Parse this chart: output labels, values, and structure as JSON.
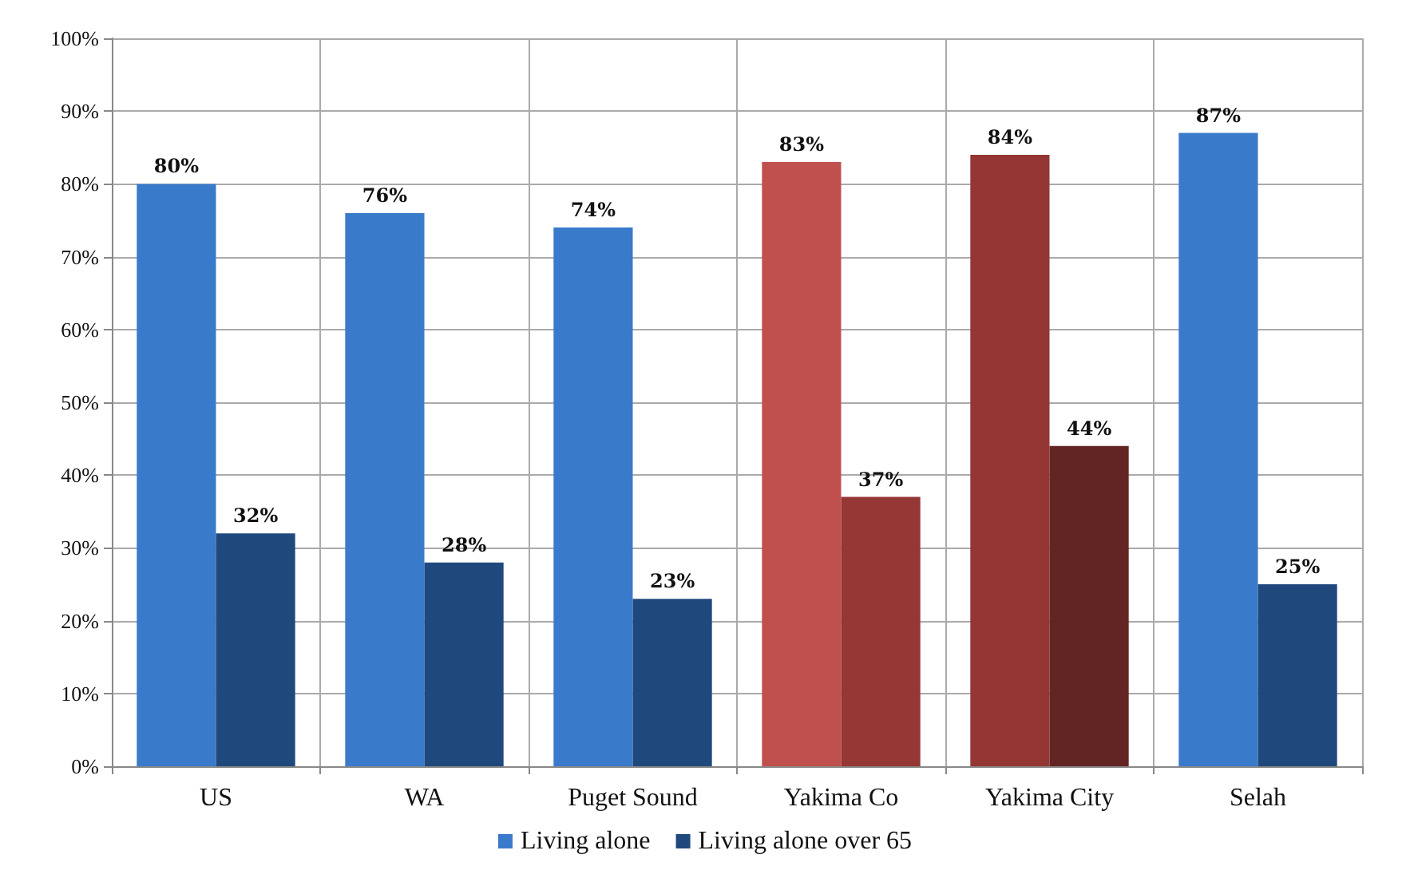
{
  "chart_data": {
    "type": "bar",
    "categories": [
      "US",
      "WA",
      "Puget Sound",
      "Yakima Co",
      "Yakima City",
      "Selah"
    ],
    "series": [
      {
        "name": "Living alone",
        "color": "#3a7acb",
        "colors": [
          "#3a7acb",
          "#3a7acb",
          "#3a7acb",
          "#c0504d",
          "#943634",
          "#3a7acb"
        ],
        "values": [
          80,
          76,
          74,
          83,
          84,
          87
        ],
        "value_labels": [
          "80%",
          "76%",
          "74%",
          "83%",
          "84%",
          "87%"
        ]
      },
      {
        "name": "Living alone over 65",
        "color": "#1f497d",
        "colors": [
          "#1f497d",
          "#1f497d",
          "#1f497d",
          "#953735",
          "#632523",
          "#1f497d"
        ],
        "values": [
          32,
          28,
          23,
          37,
          44,
          25
        ],
        "value_labels": [
          "32%",
          "28%",
          "23%",
          "37%",
          "44%",
          "25%"
        ]
      }
    ],
    "ylim": [
      0,
      100
    ],
    "yticks": [
      {
        "value": 0,
        "label": "0%"
      },
      {
        "value": 10,
        "label": "10%"
      },
      {
        "value": 20,
        "label": "20%"
      },
      {
        "value": 30,
        "label": "30%"
      },
      {
        "value": 40,
        "label": "40%"
      },
      {
        "value": 50,
        "label": "50%"
      },
      {
        "value": 60,
        "label": "60%"
      },
      {
        "value": 70,
        "label": "70%"
      },
      {
        "value": 80,
        "label": "80%"
      },
      {
        "value": 90,
        "label": "90%"
      },
      {
        "value": 100,
        "label": "100%"
      }
    ],
    "grid": true,
    "legend": "bottom"
  }
}
